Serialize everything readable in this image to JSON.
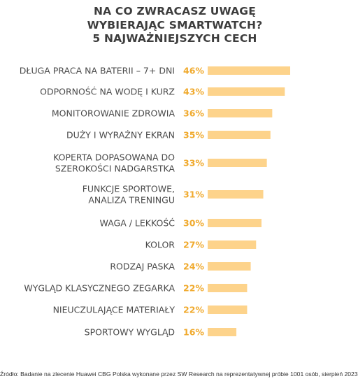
{
  "title": {
    "line1": "NA CO ZWRACASZ UWAGĘ",
    "line2": "WYBIERAJĄC SMARTWATCH?",
    "line3": "5 NAJWAŻNIEJSZYCH CECH"
  },
  "source": "Źródło: Badanie na zlecenie Huawei CBG Polska wykonane przez SW Research na reprezentatywnej próbie 1001 osób, sierpień 2023",
  "colors": {
    "bar": "#fdd38b",
    "value": "#f0aa2e",
    "label": "#4a4a4a",
    "title": "#3d3d3d"
  },
  "chart_data": {
    "type": "bar",
    "orientation": "horizontal",
    "title": "NA CO ZWRACASZ UWAGĘ WYBIERAJĄC SMARTWATCH? 5 NAJWAŻNIEJSZYCH CECH",
    "unit": "%",
    "categories": [
      [
        "DŁUGA PRACA NA BATERII – 7+ DNI"
      ],
      [
        "ODPORNOŚĆ NA WODĘ I KURZ"
      ],
      [
        "MONITOROWANIE ZDROWIA"
      ],
      [
        "DUŻY I WYRAŹNY EKRAN"
      ],
      [
        "KOPERTA DOPASOWANA DO",
        "SZEROKOŚCI NADGARSTKA"
      ],
      [
        "FUNKCJE SPORTOWE,",
        "ANALIZA TRENINGU"
      ],
      [
        "WAGA / LEKKOŚĆ"
      ],
      [
        "KOLOR"
      ],
      [
        "RODZAJ PASKA"
      ],
      [
        "WYGLĄD KLASYCZNEGO ZEGARKA"
      ],
      [
        "NIEUCZULAJĄCE MATERIAŁY"
      ],
      [
        "SPORTOWY WYGLĄD"
      ]
    ],
    "values": [
      46,
      43,
      36,
      35,
      33,
      31,
      30,
      27,
      24,
      22,
      22,
      16
    ],
    "value_labels": [
      "46%",
      "43%",
      "36%",
      "35%",
      "33%",
      "31%",
      "30%",
      "27%",
      "24%",
      "22%",
      "22%",
      "16%"
    ],
    "xlim": [
      0,
      46
    ],
    "grid": false,
    "legend": "none"
  }
}
